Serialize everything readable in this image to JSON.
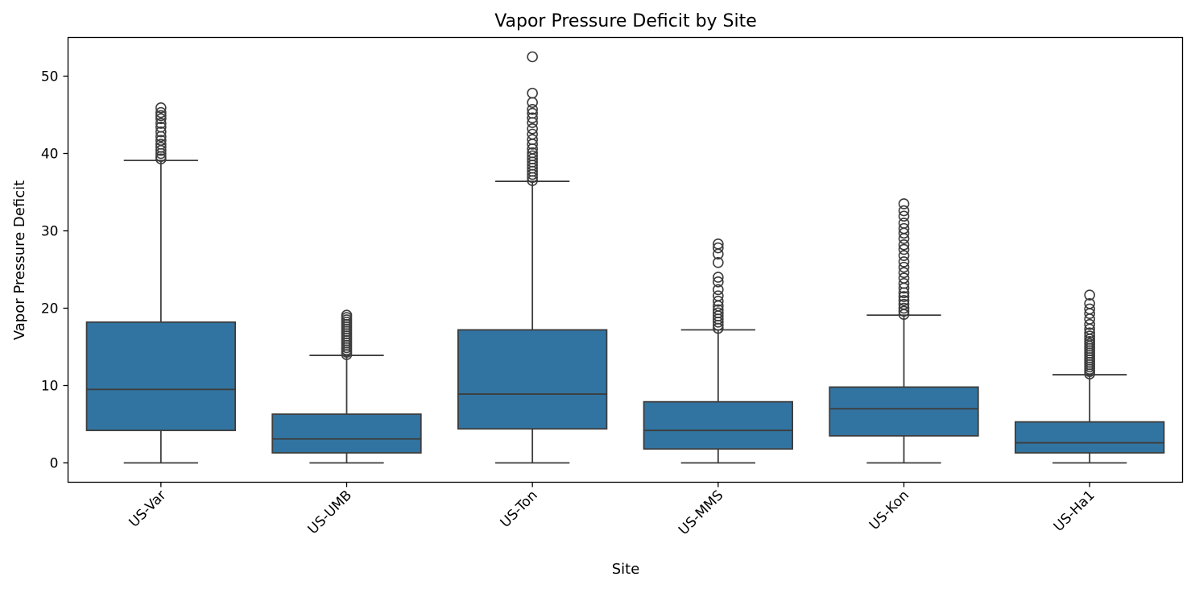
{
  "chart_data": {
    "type": "box",
    "title": "Vapor Pressure Deficit by Site",
    "xlabel": "Site",
    "ylabel": "Vapor Pressure Deficit",
    "ylim": [
      -2.5,
      55
    ],
    "yticks": [
      0,
      10,
      20,
      30,
      40,
      50
    ],
    "box_color": "#3274a1",
    "line_color": "#3d3d3d",
    "grid": false,
    "categories": [
      "US-Var",
      "US-UMB",
      "US-Ton",
      "US-MMS",
      "US-Kon",
      "US-Ha1"
    ],
    "boxes": [
      {
        "site": "US-Var",
        "whisker_low": 0,
        "q1": 4.2,
        "median": 9.5,
        "q3": 18.2,
        "whisker_high": 39.1,
        "outliers": [
          39.3,
          39.6,
          40.0,
          40.4,
          40.8,
          41.2,
          41.7,
          42.2,
          42.8,
          43.4,
          43.9,
          44.5,
          44.9,
          45.3,
          45.9
        ]
      },
      {
        "site": "US-UMB",
        "whisker_low": 0,
        "q1": 1.3,
        "median": 3.1,
        "q3": 6.3,
        "whisker_high": 13.9,
        "outliers": [
          14.0,
          14.3,
          14.6,
          14.9,
          15.2,
          15.5,
          15.8,
          16.1,
          16.4,
          16.7,
          17.0,
          17.3,
          17.6,
          17.9,
          18.2,
          18.5,
          18.8,
          19.1
        ]
      },
      {
        "site": "US-Ton",
        "whisker_low": 0,
        "q1": 4.4,
        "median": 8.9,
        "q3": 17.2,
        "whisker_high": 36.4,
        "outliers": [
          36.5,
          36.9,
          37.3,
          37.7,
          38.1,
          38.5,
          38.9,
          39.3,
          39.7,
          40.1,
          40.6,
          41.2,
          41.8,
          42.5,
          43.2,
          44.0,
          44.6,
          45.2,
          45.7,
          46.6,
          47.8,
          52.5
        ]
      },
      {
        "site": "US-MMS",
        "whisker_low": 0,
        "q1": 1.8,
        "median": 4.2,
        "q3": 7.9,
        "whisker_high": 17.2,
        "outliers": [
          17.4,
          17.8,
          18.2,
          18.6,
          19.0,
          19.4,
          19.8,
          20.3,
          20.9,
          21.6,
          22.4,
          23.4,
          24.0,
          25.9,
          27.0,
          27.8,
          28.3
        ]
      },
      {
        "site": "US-Kon",
        "whisker_low": 0,
        "q1": 3.5,
        "median": 7.0,
        "q3": 9.8,
        "whisker_high": 19.1,
        "outliers": [
          19.2,
          19.6,
          20.0,
          20.5,
          21.0,
          21.5,
          22.0,
          22.6,
          23.2,
          23.9,
          24.6,
          25.3,
          26.0,
          26.8,
          27.6,
          28.2,
          29.0,
          29.7,
          30.3,
          31.0,
          31.9,
          32.6,
          33.5
        ]
      },
      {
        "site": "US-Ha1",
        "whisker_low": 0,
        "q1": 1.3,
        "median": 2.6,
        "q3": 5.3,
        "whisker_high": 11.4,
        "outliers": [
          11.5,
          11.8,
          12.1,
          12.4,
          12.7,
          13.0,
          13.3,
          13.6,
          13.9,
          14.2,
          14.5,
          14.8,
          15.1,
          15.4,
          15.7,
          16.0,
          16.4,
          16.8,
          17.3,
          17.9,
          18.6,
          19.3,
          19.9,
          20.6,
          21.7
        ]
      }
    ]
  }
}
